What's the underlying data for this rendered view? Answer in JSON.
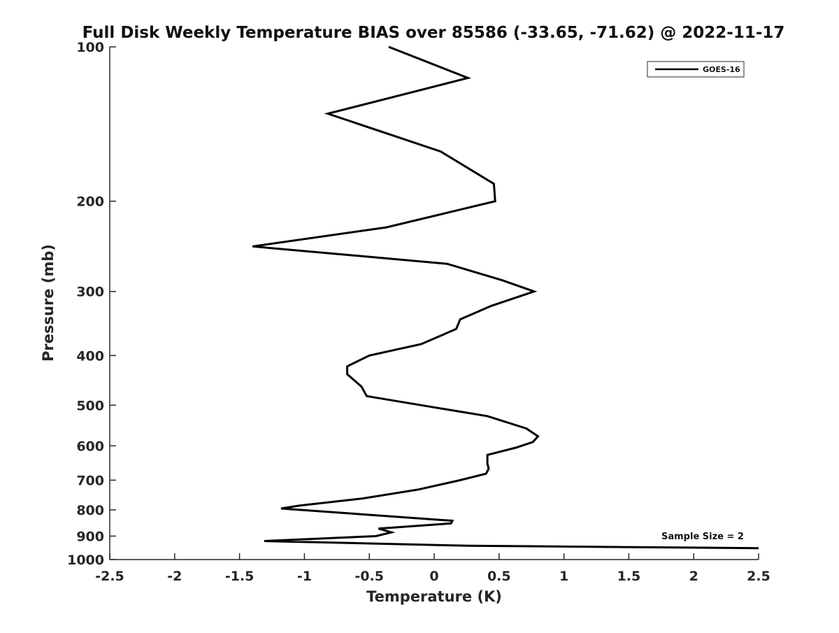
{
  "chart_data": {
    "type": "line",
    "title": "Full Disk Weekly Temperature BIAS over 85586 (-33.65, -71.62) @ 2022-11-17",
    "xlabel": "Temperature (K)",
    "ylabel": "Pressure (mb)",
    "xlim": [
      -2.5,
      2.5
    ],
    "ylim": [
      1000,
      100
    ],
    "yscale": "log",
    "x_ticks": [
      -2.5,
      -2,
      -1.5,
      -1,
      -0.5,
      0,
      0.5,
      1,
      1.5,
      2,
      2.5
    ],
    "x_tick_labels": [
      "-2.5",
      "-2",
      "-1.5",
      "-1",
      "-0.5",
      "0",
      "0.5",
      "1",
      "1.5",
      "2",
      "2.5"
    ],
    "y_ticks": [
      100,
      200,
      300,
      400,
      500,
      600,
      700,
      800,
      900,
      1000
    ],
    "y_tick_labels": [
      "100",
      "200",
      "300",
      "400",
      "500",
      "600",
      "700",
      "800",
      "900",
      "1000"
    ],
    "grid": false,
    "legend_position": "top-right",
    "series": [
      {
        "name": "GOES-16",
        "color": "#000000",
        "points": [
          [
            -0.35,
            100
          ],
          [
            0.26,
            115
          ],
          [
            -0.82,
            135
          ],
          [
            0.05,
            160
          ],
          [
            0.46,
            185
          ],
          [
            0.47,
            200
          ],
          [
            -0.37,
            225
          ],
          [
            -1.4,
            245
          ],
          [
            0.1,
            265
          ],
          [
            0.52,
            285
          ],
          [
            0.77,
            300
          ],
          [
            0.44,
            320
          ],
          [
            0.2,
            340
          ],
          [
            0.17,
            355
          ],
          [
            -0.1,
            380
          ],
          [
            -0.5,
            400
          ],
          [
            -0.67,
            420
          ],
          [
            -0.67,
            435
          ],
          [
            -0.56,
            460
          ],
          [
            -0.52,
            480
          ],
          [
            -0.1,
            500
          ],
          [
            0.41,
            525
          ],
          [
            0.71,
            555
          ],
          [
            0.8,
            575
          ],
          [
            0.76,
            590
          ],
          [
            0.63,
            605
          ],
          [
            0.41,
            625
          ],
          [
            0.41,
            650
          ],
          [
            0.42,
            665
          ],
          [
            0.4,
            680
          ],
          [
            0.2,
            700
          ],
          [
            -0.12,
            730
          ],
          [
            -0.55,
            760
          ],
          [
            -1.04,
            785
          ],
          [
            -1.18,
            795
          ],
          [
            0.14,
            840
          ],
          [
            0.13,
            850
          ],
          [
            -0.43,
            870
          ],
          [
            -0.33,
            885
          ],
          [
            -0.45,
            900
          ],
          [
            -1.31,
            920
          ],
          [
            0.27,
            940
          ],
          [
            2.5,
            950
          ]
        ]
      }
    ],
    "annotations": [
      "Sample Size = 2"
    ]
  }
}
